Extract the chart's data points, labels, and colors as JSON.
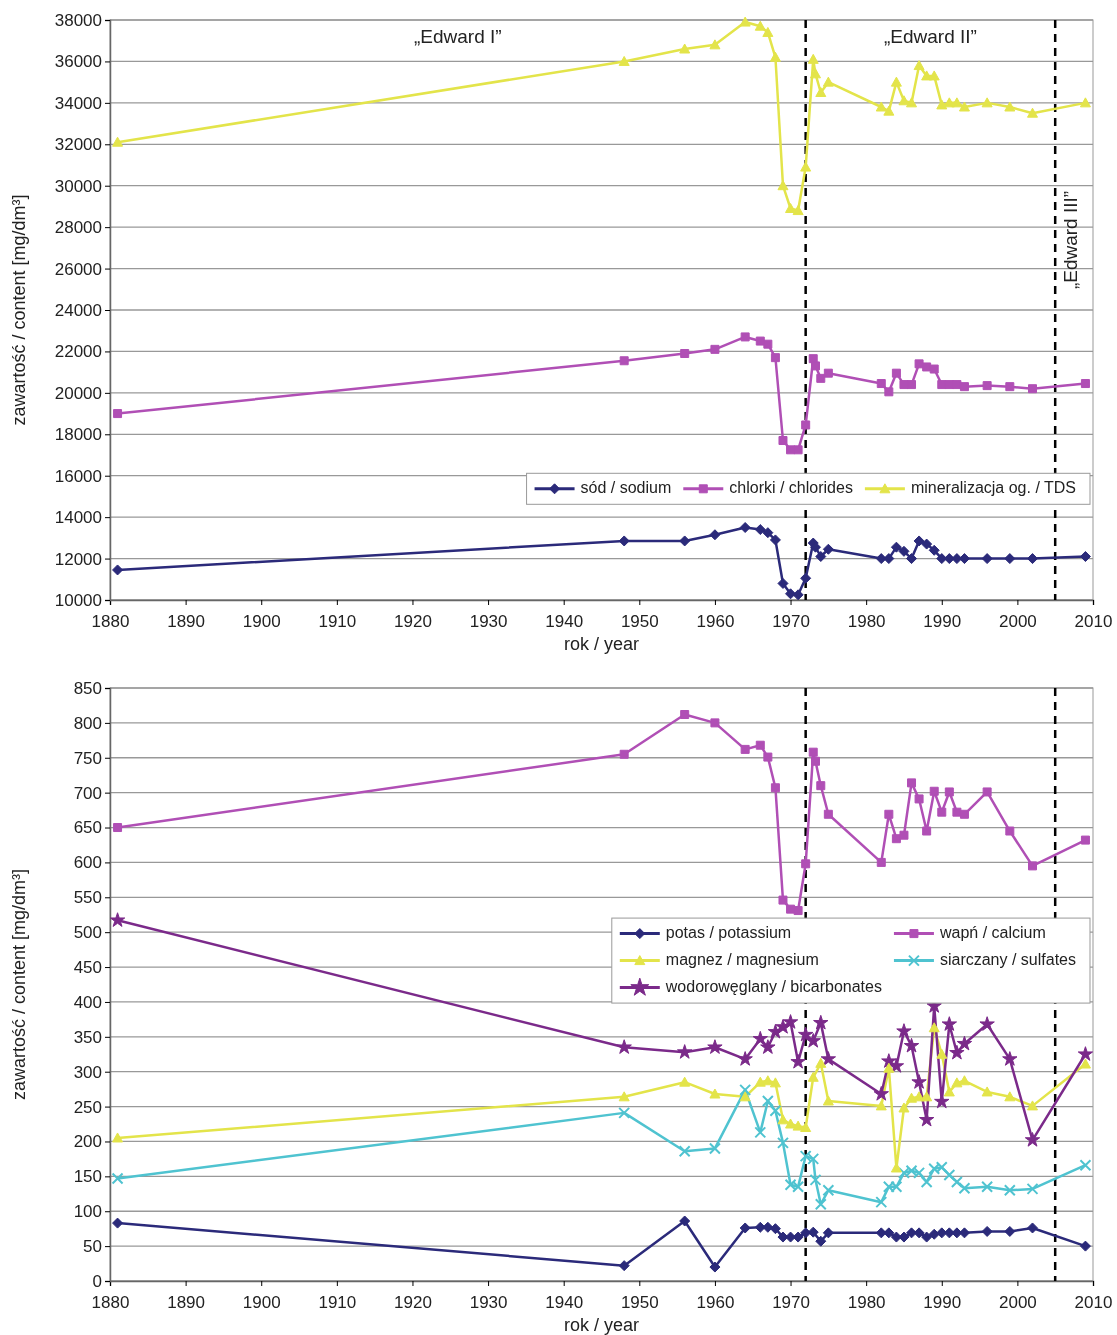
{
  "chart_data": [
    {
      "type": "line",
      "xlabel": "rok / year",
      "ylabel": "zawartość / content  [mg/dm³]",
      "xlim": [
        1880,
        2010
      ],
      "xticks": [
        1880,
        1890,
        1900,
        1910,
        1920,
        1930,
        1940,
        1950,
        1960,
        1970,
        1980,
        1990,
        2000,
        2010
      ],
      "ylim": [
        10000,
        38000
      ],
      "yticks": [
        10000,
        12000,
        14000,
        16000,
        18000,
        20000,
        22000,
        24000,
        26000,
        28000,
        30000,
        32000,
        34000,
        36000,
        38000
      ],
      "grid": "y",
      "legend": "bottom right",
      "line_style": "solid",
      "annotations": [
        "„Edward I”",
        "„Edward II”"
      ],
      "ref_lines": [
        {
          "axis": "x",
          "value": 1972,
          "color": "#000000",
          "line_style": "dashed"
        },
        {
          "axis": "x",
          "value": 2005,
          "color": "#000000",
          "line_style": "dashed",
          "label": "„Edward III”"
        }
      ],
      "series": [
        {
          "name": "sód / sodium",
          "color": "#2b2a7a",
          "marker": "diamond",
          "x": [
            1881,
            1948,
            1956,
            1960,
            1964,
            1966,
            1967,
            1968,
            1969,
            1970,
            1971,
            1972,
            1973,
            1973.3,
            1974,
            1975,
            1982,
            1983,
            1984,
            1985,
            1986,
            1987,
            1988,
            1989,
            1990,
            1991,
            1992,
            1993,
            1996,
            1999,
            2002,
            2009
          ],
          "values": [
            11450,
            12850,
            12850,
            13150,
            13500,
            13400,
            13250,
            12900,
            10800,
            10300,
            10250,
            11050,
            12750,
            12550,
            12100,
            12450,
            12000,
            12000,
            12550,
            12350,
            12000,
            12850,
            12700,
            12400,
            12000,
            12000,
            12000,
            12000,
            12000,
            12000,
            12000,
            12100
          ]
        },
        {
          "name": "chlorki / chlorides",
          "color": "#b04fb5",
          "marker": "square",
          "x": [
            1881,
            1948,
            1956,
            1960,
            1964,
            1966,
            1967,
            1968,
            1969,
            1970,
            1971,
            1972,
            1973,
            1973.3,
            1974,
            1975,
            1982,
            1983,
            1984,
            1985,
            1986,
            1987,
            1988,
            1989,
            1990,
            1991,
            1992,
            1993,
            1996,
            1999,
            2002,
            2009
          ],
          "values": [
            19000,
            21550,
            21900,
            22100,
            22700,
            22500,
            22350,
            21700,
            17700,
            17250,
            17250,
            18450,
            21650,
            21300,
            20700,
            20950,
            20450,
            20050,
            20950,
            20400,
            20400,
            21400,
            21250,
            21150,
            20400,
            20400,
            20400,
            20300,
            20350,
            20300,
            20200,
            20450
          ]
        },
        {
          "name": "mineralizacja og. / TDS",
          "color": "#e3e44a",
          "marker": "triangle",
          "x": [
            1881,
            1948,
            1956,
            1960,
            1964,
            1966,
            1967,
            1968,
            1969,
            1970,
            1971,
            1972,
            1973,
            1973.3,
            1974,
            1975,
            1982,
            1983,
            1984,
            1985,
            1986,
            1987,
            1988,
            1989,
            1990,
            1991,
            1992,
            1993,
            1996,
            1999,
            2002,
            2009
          ],
          "values": [
            32100,
            36000,
            36600,
            36800,
            37900,
            37700,
            37400,
            36200,
            30000,
            28900,
            28800,
            30900,
            36100,
            35400,
            34500,
            35000,
            33800,
            33600,
            35000,
            34100,
            34000,
            35800,
            35300,
            35300,
            33900,
            34000,
            34000,
            33800,
            34000,
            33800,
            33500,
            34000
          ]
        }
      ]
    },
    {
      "type": "line",
      "xlabel": "rok / year",
      "ylabel": "zawartość / content  [mg/dm³]",
      "xlim": [
        1880,
        2010
      ],
      "xticks": [
        1880,
        1890,
        1900,
        1910,
        1920,
        1930,
        1940,
        1950,
        1960,
        1970,
        1980,
        1990,
        2000,
        2010
      ],
      "ylim": [
        0,
        850
      ],
      "yticks": [
        0,
        50,
        100,
        150,
        200,
        250,
        300,
        350,
        400,
        450,
        500,
        550,
        600,
        650,
        700,
        750,
        800,
        850
      ],
      "grid": "y",
      "legend": "center right",
      "line_style": "solid",
      "ref_lines": [
        {
          "axis": "x",
          "value": 1972,
          "color": "#000000",
          "line_style": "dashed"
        },
        {
          "axis": "x",
          "value": 2005,
          "color": "#000000",
          "line_style": "dashed"
        }
      ],
      "series": [
        {
          "name": "potas / potassium",
          "color": "#2b2a7a",
          "marker": "diamond",
          "x": [
            1881,
            1948,
            1956,
            1960,
            1964,
            1966,
            1967,
            1968,
            1969,
            1970,
            1971,
            1972,
            1973,
            1974,
            1975,
            1982,
            1983,
            1984,
            1985,
            1986,
            1987,
            1988,
            1989,
            1990,
            1991,
            1992,
            1993,
            1996,
            1999,
            2002,
            2009
          ],
          "values": [
            83,
            22,
            86,
            20,
            76,
            77,
            77,
            75,
            63,
            63,
            63,
            69,
            70,
            57,
            69,
            69,
            69,
            63,
            63,
            69,
            69,
            63,
            67,
            69,
            69,
            69,
            69,
            71,
            71,
            76,
            50
          ]
        },
        {
          "name": "wapń / calcium",
          "color": "#b04fb5",
          "marker": "square",
          "x": [
            1881,
            1948,
            1956,
            1960,
            1964,
            1966,
            1967,
            1968,
            1969,
            1970,
            1971,
            1972,
            1973,
            1973.3,
            1974,
            1975,
            1982,
            1983,
            1984,
            1985,
            1986,
            1987,
            1988,
            1989,
            1990,
            1991,
            1992,
            1993,
            1996,
            1999,
            2002,
            2009
          ],
          "values": [
            650,
            755,
            812,
            800,
            762,
            768,
            751,
            707,
            546,
            533,
            531,
            598,
            758,
            745,
            710,
            669,
            600,
            669,
            634,
            639,
            714,
            691,
            645,
            702,
            672,
            701,
            672,
            669,
            701,
            645,
            595,
            632
          ]
        },
        {
          "name": "magnez / magnesium",
          "color": "#e3e44a",
          "marker": "triangle",
          "x": [
            1881,
            1948,
            1956,
            1960,
            1964,
            1966,
            1967,
            1968,
            1969,
            1970,
            1971,
            1972,
            1973,
            1974,
            1975,
            1982,
            1983,
            1984,
            1985,
            1986,
            1987,
            1988,
            1989,
            1990,
            1991,
            1992,
            1993,
            1996,
            1999,
            2002,
            2009
          ],
          "values": [
            205,
            264,
            285,
            268,
            264,
            285,
            287,
            284,
            231,
            225,
            222,
            220,
            292,
            312,
            258,
            251,
            305,
            162,
            248,
            262,
            264,
            264,
            363,
            325,
            271,
            284,
            287,
            271,
            264,
            251,
            311
          ]
        },
        {
          "name": "siarczany / sulfates",
          "color": "#4fc3d0",
          "marker": "cross",
          "x": [
            1881,
            1948,
            1956,
            1960,
            1964,
            1966,
            1967,
            1968,
            1969,
            1970,
            1971,
            1972,
            1973,
            1973.3,
            1974,
            1975,
            1982,
            1983,
            1984,
            1985,
            1986,
            1987,
            1988,
            1989,
            1990,
            1991,
            1992,
            1993,
            1996,
            1999,
            2002,
            2009
          ],
          "values": [
            147,
            241,
            186,
            190,
            274,
            213,
            258,
            244,
            198,
            138,
            135,
            179,
            175,
            145,
            110,
            130,
            113,
            135,
            135,
            155,
            158,
            155,
            142,
            161,
            163,
            152,
            142,
            133,
            135,
            130,
            132,
            166
          ]
        },
        {
          "name": "wodorowęglany / bicarbonates",
          "color": "#7b2a8a",
          "marker": "star",
          "x": [
            1881,
            1948,
            1956,
            1960,
            1964,
            1966,
            1967,
            1968,
            1969,
            1970,
            1971,
            1972,
            1973,
            1974,
            1975,
            1982,
            1983,
            1984,
            1985,
            1986,
            1987,
            1988,
            1989,
            1990,
            1991,
            1992,
            1993,
            1996,
            1999,
            2002,
            2009
          ],
          "values": [
            517,
            335,
            328,
            335,
            318,
            347,
            335,
            357,
            364,
            371,
            314,
            353,
            344,
            370,
            318,
            268,
            315,
            308,
            358,
            337,
            285,
            231,
            394,
            257,
            368,
            327,
            340,
            368,
            318,
            202,
            325
          ]
        }
      ]
    }
  ]
}
